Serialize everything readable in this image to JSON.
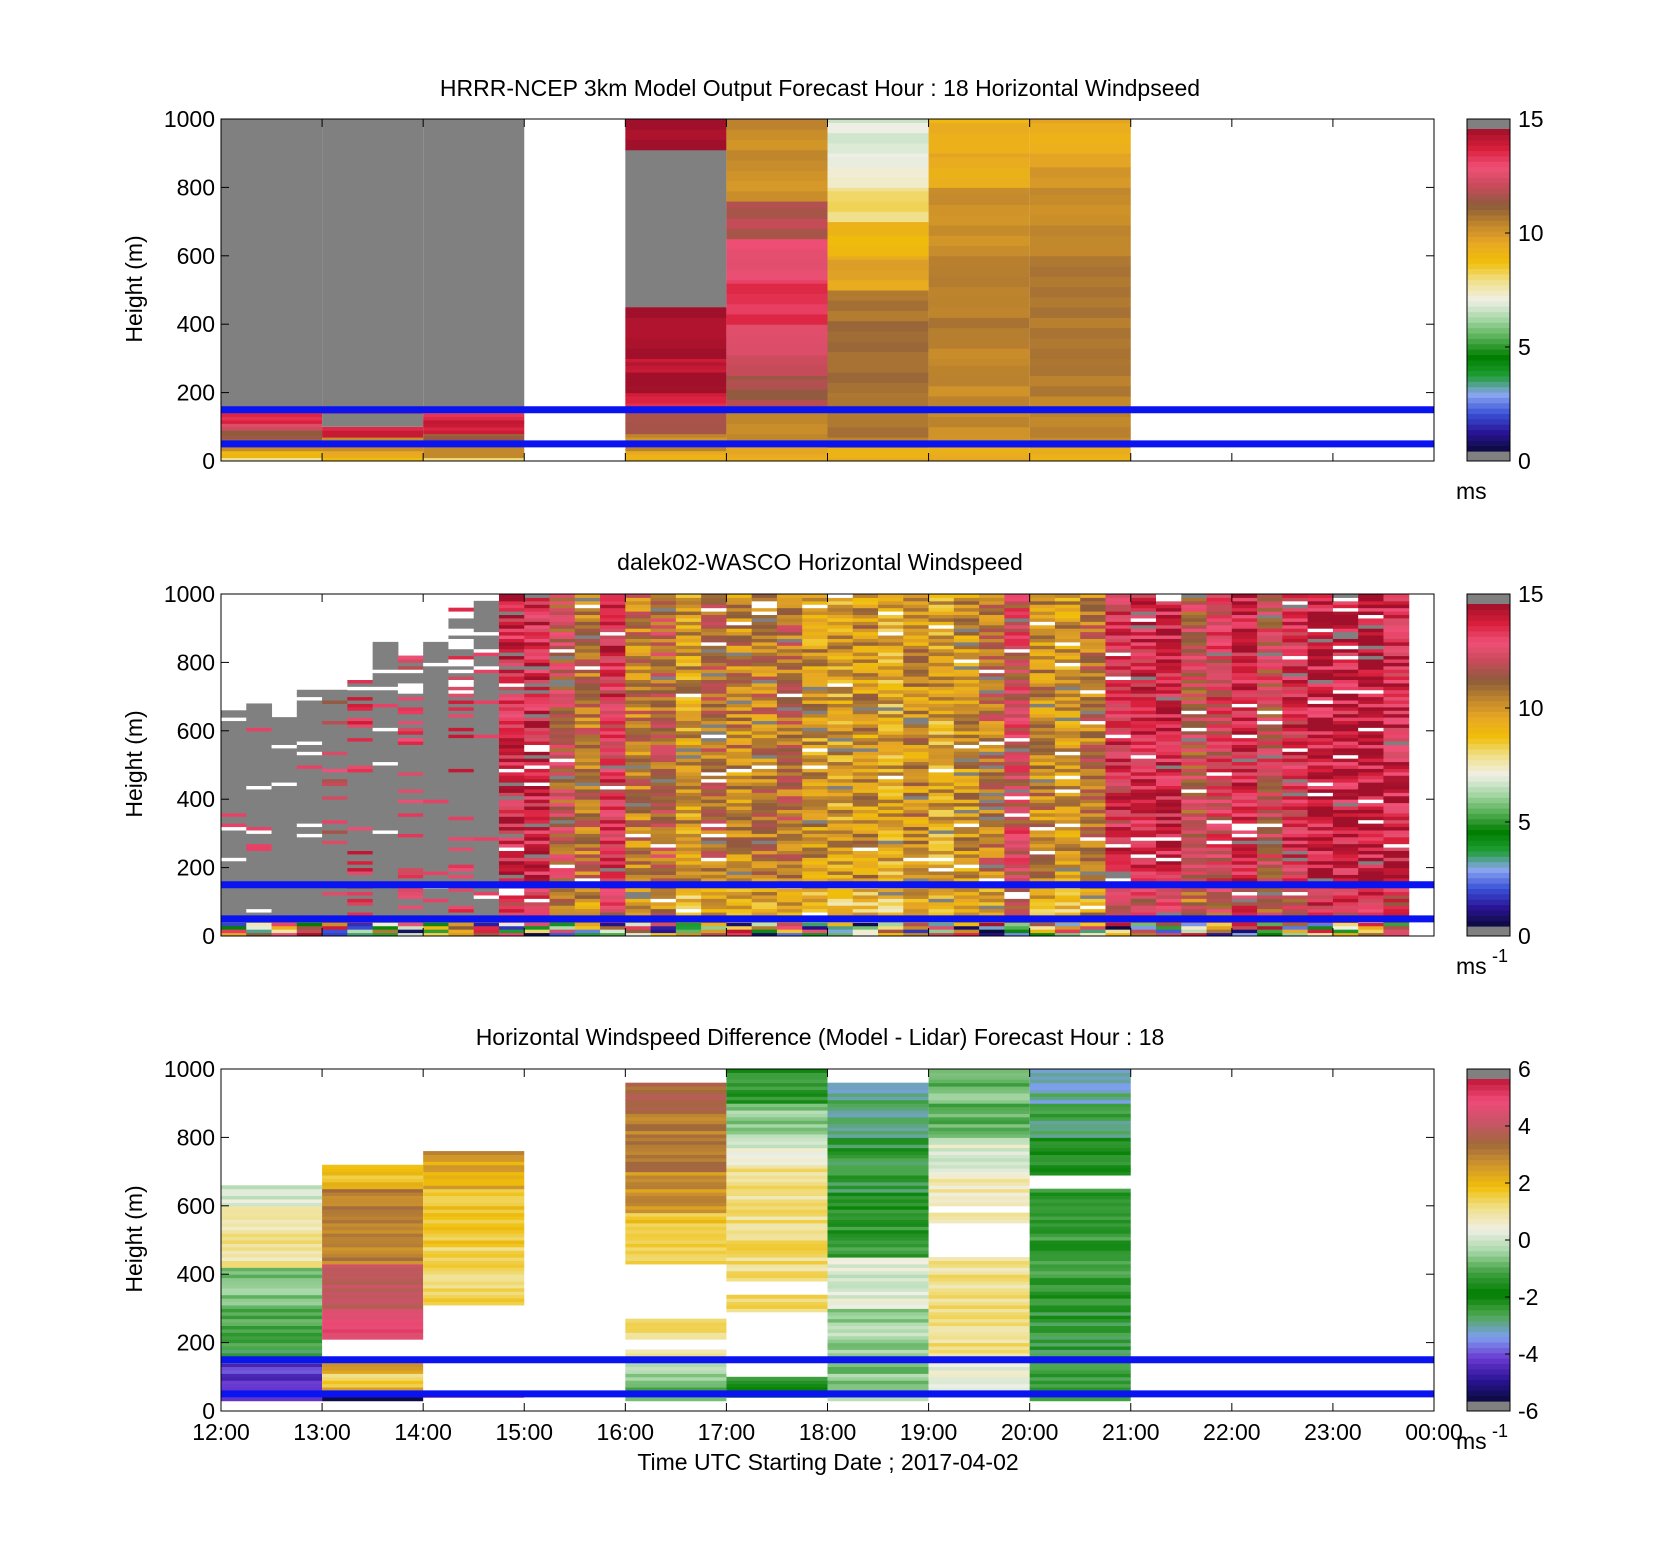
{
  "figure": {
    "xlabel": "Time UTC  Starting Date ; 2017-04-02",
    "x_ticks": [
      "12:00",
      "13:00",
      "14:00",
      "15:00",
      "16:00",
      "17:00",
      "18:00",
      "19:00",
      "20:00",
      "21:00",
      "22:00",
      "23:00",
      "00:00"
    ],
    "y_ticks": [
      "0",
      "200",
      "400",
      "600",
      "800",
      "1000"
    ]
  },
  "chart_data": [
    {
      "id": "model",
      "type": "heatmap",
      "title": "HRRR-NCEP 3km Model Output   Forecast Hour : 18 Horizontal Windpseed",
      "ylabel": "Height (m)",
      "xlim": [
        "12:00",
        "00:00"
      ],
      "ylim": [
        0,
        1000
      ],
      "colorbar": {
        "min": 0,
        "max": 15,
        "ticks": [
          0,
          5,
          10,
          15
        ],
        "unit": "ms",
        "unit_sup": ""
      },
      "reference_lines_m": [
        150,
        50
      ],
      "reference_line_color": "#0a14f0",
      "columns": [
        {
          "t0": "12:00",
          "t1": "13:00",
          "profile": [
            [
              0,
              10,
              7.8
            ],
            [
              10,
              30,
              9.2
            ],
            [
              30,
              45,
              10.6
            ],
            [
              45,
              90,
              11.5
            ],
            [
              90,
              110,
              12.6
            ],
            [
              110,
              150,
              14.0
            ],
            [
              150,
              1000,
              "missing"
            ]
          ]
        },
        {
          "t0": "13:00",
          "t1": "14:00",
          "profile": [
            [
              0,
              10,
              8.8
            ],
            [
              10,
              30,
              9.8
            ],
            [
              30,
              70,
              10.5
            ],
            [
              70,
              100,
              14.2
            ],
            [
              100,
              140,
              "missing"
            ],
            [
              140,
              150,
              14.0
            ],
            [
              150,
              1000,
              "missing"
            ]
          ]
        },
        {
          "t0": "14:00",
          "t1": "15:00",
          "profile": [
            [
              0,
              10,
              7.8
            ],
            [
              10,
              45,
              10.5
            ],
            [
              45,
              80,
              11.5
            ],
            [
              80,
              130,
              14.2
            ],
            [
              130,
              150,
              13.5
            ],
            [
              150,
              1000,
              "missing"
            ]
          ]
        },
        {
          "t0": "16:00",
          "t1": "17:00",
          "profile": [
            [
              0,
              30,
              9.5
            ],
            [
              30,
              80,
              10.5
            ],
            [
              80,
              150,
              12.0
            ],
            [
              150,
              200,
              14.0
            ],
            [
              200,
              260,
              14.8
            ],
            [
              260,
              300,
              14.5
            ],
            [
              300,
              450,
              14.9
            ],
            [
              450,
              910,
              "missing"
            ],
            [
              910,
              1000,
              14.9
            ]
          ]
        },
        {
          "t0": "17:00",
          "t1": "18:00",
          "profile": [
            [
              0,
              50,
              9.5
            ],
            [
              50,
              150,
              10.5
            ],
            [
              150,
              250,
              11.8
            ],
            [
              250,
              400,
              12.6
            ],
            [
              400,
              530,
              13.8
            ],
            [
              530,
              650,
              13.2
            ],
            [
              650,
              760,
              12.1
            ],
            [
              760,
              1000,
              10.4
            ]
          ]
        },
        {
          "t0": "18:00",
          "t1": "19:00",
          "profile": [
            [
              0,
              40,
              9.5
            ],
            [
              40,
              200,
              10.8
            ],
            [
              200,
              500,
              11.0
            ],
            [
              500,
              600,
              9.8
            ],
            [
              600,
              700,
              9.2
            ],
            [
              700,
              800,
              8.0
            ],
            [
              800,
              900,
              7.2
            ],
            [
              900,
              1000,
              6.8
            ]
          ]
        },
        {
          "t0": "19:00",
          "t1": "20:00",
          "profile": [
            [
              0,
              40,
              9.5
            ],
            [
              40,
              300,
              10.4
            ],
            [
              300,
              600,
              10.7
            ],
            [
              600,
              800,
              10.2
            ],
            [
              800,
              900,
              9.6
            ],
            [
              900,
              1000,
              9.3
            ]
          ]
        },
        {
          "t0": "20:00",
          "t1": "21:00",
          "profile": [
            [
              0,
              40,
              9.5
            ],
            [
              40,
              300,
              10.7
            ],
            [
              300,
              600,
              11.0
            ],
            [
              600,
              800,
              10.4
            ],
            [
              800,
              900,
              10.0
            ],
            [
              900,
              1000,
              9.6
            ]
          ]
        }
      ]
    },
    {
      "id": "lidar",
      "type": "heatmap",
      "title": "dalek02-WASCO  Horizontal Windspeed",
      "ylabel": "Height (m)",
      "xlim": [
        "12:00",
        "00:00"
      ],
      "ylim": [
        0,
        1000
      ],
      "colorbar": {
        "min": 0,
        "max": 15,
        "ticks": [
          0,
          5,
          10,
          15
        ],
        "unit": "ms",
        "unit_sup": "-1"
      },
      "reference_lines_m": [
        150,
        50
      ],
      "reference_line_color": "#0a14f0",
      "column_minutes": 15,
      "columns": [
        {
          "t": "12:00",
          "base": "missing",
          "top": 660,
          "speed": null
        },
        {
          "t": "12:15",
          "base": "missing",
          "top": 680,
          "speed": null
        },
        {
          "t": "12:30",
          "base": "missing",
          "top": 640,
          "speed": null
        },
        {
          "t": "12:45",
          "base": "missing",
          "top": 720,
          "speed": null
        },
        {
          "t": "13:00",
          "base": "mix",
          "top": 720,
          "speed": 12.5
        },
        {
          "t": "13:15",
          "base": "mix",
          "top": 760,
          "speed": 13.5
        },
        {
          "t": "13:30",
          "base": "missing",
          "top": 860,
          "speed": null
        },
        {
          "t": "13:45",
          "base": "mix",
          "top": 820,
          "speed": 13.0
        },
        {
          "t": "14:00",
          "base": "missing",
          "top": 860,
          "speed": null
        },
        {
          "t": "14:15",
          "base": "mix",
          "top": 960,
          "speed": 13.5
        },
        {
          "t": "14:30",
          "base": "missing",
          "top": 980,
          "speed": null
        },
        {
          "t": "14:45",
          "base": "speed",
          "top": 1000,
          "speed": 13.8
        },
        {
          "t": "15:00",
          "base": "speed",
          "top": 1000,
          "speed": 14.0
        },
        {
          "t": "15:15",
          "base": "speed",
          "top": 1000,
          "speed": 12.0
        },
        {
          "t": "15:30",
          "base": "speed",
          "top": 1000,
          "speed": 11.0
        },
        {
          "t": "15:45",
          "base": "speed",
          "top": 1000,
          "speed": 13.5
        },
        {
          "t": "16:00",
          "base": "speed",
          "top": 1000,
          "speed": 10.8
        },
        {
          "t": "16:15",
          "base": "speed",
          "top": 1000,
          "speed": 11.5
        },
        {
          "t": "16:30",
          "base": "speed",
          "top": 1000,
          "speed": 10.0
        },
        {
          "t": "16:45",
          "base": "speed",
          "top": 1000,
          "speed": 11.0
        },
        {
          "t": "17:00",
          "base": "speed",
          "top": 1000,
          "speed": 10.5
        },
        {
          "t": "17:15",
          "base": "speed",
          "top": 1000,
          "speed": 10.8
        },
        {
          "t": "17:30",
          "base": "speed",
          "top": 1000,
          "speed": 11.2
        },
        {
          "t": "17:45",
          "base": "speed",
          "top": 1000,
          "speed": 10.0
        },
        {
          "t": "18:00",
          "base": "speed",
          "top": 1000,
          "speed": 9.8
        },
        {
          "t": "18:15",
          "base": "speed",
          "top": 1000,
          "speed": 10.2
        },
        {
          "t": "18:30",
          "base": "speed",
          "top": 1000,
          "speed": 9.6
        },
        {
          "t": "18:45",
          "base": "speed",
          "top": 1000,
          "speed": 10.4
        },
        {
          "t": "19:00",
          "base": "speed",
          "top": 1000,
          "speed": 9.7
        },
        {
          "t": "19:15",
          "base": "speed",
          "top": 1000,
          "speed": 10.2
        },
        {
          "t": "19:30",
          "base": "speed",
          "top": 1000,
          "speed": 11.0
        },
        {
          "t": "19:45",
          "base": "speed",
          "top": 1000,
          "speed": 12.5
        },
        {
          "t": "20:00",
          "base": "speed",
          "top": 1000,
          "speed": 10.5
        },
        {
          "t": "20:15",
          "base": "speed",
          "top": 1000,
          "speed": 10.0
        },
        {
          "t": "20:30",
          "base": "speed",
          "top": 1000,
          "speed": 11.0
        },
        {
          "t": "20:45",
          "base": "speed",
          "top": 1000,
          "speed": 13.5
        },
        {
          "t": "21:00",
          "base": "speed",
          "top": 1000,
          "speed": 13.8
        },
        {
          "t": "21:15",
          "base": "speed",
          "top": 1000,
          "speed": 14.2
        },
        {
          "t": "21:30",
          "base": "speed",
          "top": 1000,
          "speed": 12.2
        },
        {
          "t": "21:45",
          "base": "speed",
          "top": 1000,
          "speed": 13.0
        },
        {
          "t": "22:00",
          "base": "speed",
          "top": 1000,
          "speed": 14.0
        },
        {
          "t": "22:15",
          "base": "speed",
          "top": 1000,
          "speed": 12.5
        },
        {
          "t": "22:30",
          "base": "speed",
          "top": 1000,
          "speed": 13.5
        },
        {
          "t": "22:45",
          "base": "speed",
          "top": 1000,
          "speed": 14.5
        },
        {
          "t": "23:00",
          "base": "speed",
          "top": 1000,
          "speed": 14.2
        },
        {
          "t": "23:15",
          "base": "speed",
          "top": 1000,
          "speed": 14.8
        },
        {
          "t": "23:30",
          "base": "speed",
          "top": 1000,
          "speed": 14.0
        }
      ]
    },
    {
      "id": "diff",
      "type": "heatmap",
      "title": "Horizontal Windspeed Difference (Model - Lidar) Forecast Hour : 18",
      "ylabel": "Height (m)",
      "xlim": [
        "12:00",
        "00:00"
      ],
      "ylim": [
        0,
        1000
      ],
      "colorbar": {
        "min": -6,
        "max": 6,
        "ticks": [
          -6,
          -4,
          -2,
          0,
          2,
          4,
          6
        ],
        "unit": "ms",
        "unit_sup": "-1"
      },
      "reference_lines_m": [
        150,
        50
      ],
      "reference_line_color": "#0a14f0",
      "columns": [
        {
          "t0": "12:00",
          "t1": "13:00",
          "profile": [
            [
              30,
              60,
              -4.8
            ],
            [
              60,
              140,
              -4.5
            ],
            [
              140,
              180,
              -2.8
            ],
            [
              180,
              300,
              -1.2
            ],
            [
              300,
              420,
              -0.6
            ],
            [
              420,
              600,
              1.0
            ],
            [
              600,
              660,
              0.1
            ]
          ]
        },
        {
          "t0": "13:00",
          "t1": "14:00",
          "profile": [
            [
              30,
              60,
              -5.5
            ],
            [
              60,
              70,
              2.5
            ],
            [
              70,
              110,
              1.5
            ],
            [
              110,
              150,
              2.8
            ],
            [
              210,
              300,
              5.0
            ],
            [
              300,
              430,
              4.2
            ],
            [
              430,
              650,
              3.2
            ],
            [
              650,
              720,
              2.0
            ]
          ]
        },
        {
          "t0": "14:00",
          "t1": "15:00",
          "profile": [
            [
              40,
              60,
              5.0
            ],
            [
              310,
              480,
              1.5
            ],
            [
              480,
              650,
              1.8
            ],
            [
              650,
              730,
              2.5
            ],
            [
              730,
              760,
              3.2
            ]
          ]
        },
        {
          "t0": "16:00",
          "t1": "17:00",
          "profile": [
            [
              30,
              100,
              -0.8
            ],
            [
              100,
              150,
              -0.3
            ],
            [
              160,
              180,
              1.0
            ],
            [
              210,
              270,
              1.2
            ],
            [
              430,
              580,
              1.8
            ],
            [
              580,
              700,
              2.8
            ],
            [
              700,
              880,
              3.3
            ],
            [
              880,
              960,
              3.8
            ]
          ]
        },
        {
          "t0": "17:00",
          "t1": "18:00",
          "profile": [
            [
              40,
              100,
              -1.5
            ],
            [
              290,
              340,
              1.3
            ],
            [
              380,
              550,
              1.3
            ],
            [
              550,
              720,
              1.2
            ],
            [
              720,
              800,
              0.2
            ],
            [
              800,
              900,
              -0.6
            ],
            [
              900,
              1000,
              -1.5
            ]
          ]
        },
        {
          "t0": "18:00",
          "t1": "19:00",
          "profile": [
            [
              30,
              150,
              -0.6
            ],
            [
              150,
              300,
              -0.4
            ],
            [
              300,
              450,
              0.2
            ],
            [
              450,
              600,
              -1.4
            ],
            [
              600,
              800,
              -2.6
            ],
            [
              800,
              960,
              -3.0
            ]
          ]
        },
        {
          "t0": "19:00",
          "t1": "20:00",
          "profile": [
            [
              40,
              150,
              0.3
            ],
            [
              150,
              400,
              1.2
            ],
            [
              400,
              450,
              1.0
            ],
            [
              550,
              580,
              1.0
            ],
            [
              600,
              700,
              0.8
            ],
            [
              700,
              800,
              0.3
            ],
            [
              800,
              1000,
              -0.9
            ]
          ]
        },
        {
          "t0": "20:00",
          "t1": "21:00",
          "profile": [
            [
              30,
              300,
              -2.6
            ],
            [
              300,
              650,
              -1.4
            ],
            [
              690,
              800,
              -2.2
            ],
            [
              800,
              900,
              -2.8
            ],
            [
              900,
              1000,
              -3.2
            ]
          ]
        }
      ]
    }
  ],
  "colors": {
    "speed_scale": [
      "#0a0a3c",
      "#2a1496",
      "#3a52d8",
      "#8aa6f0",
      "#1e9e32",
      "#007e00",
      "#55b055",
      "#a8d8a8",
      "#f0f0e6",
      "#f0e08a",
      "#f0be0a",
      "#e8a824",
      "#c0862c",
      "#8c5c3c",
      "#c84a5a",
      "#f05078",
      "#d81e3a",
      "#a0102a"
    ],
    "diff_scale": [
      "#0a0a3c",
      "#2a1496",
      "#6a38d0",
      "#7ea0f0",
      "#4ea850",
      "#007e00",
      "#40a040",
      "#a8d8a8",
      "#f0f0e6",
      "#f0e08a",
      "#f0be0a",
      "#d0962c",
      "#a0693c",
      "#c85468",
      "#f04a78",
      "#c01838"
    ],
    "missing": "#808080",
    "reference_line": "#0a14f0"
  }
}
